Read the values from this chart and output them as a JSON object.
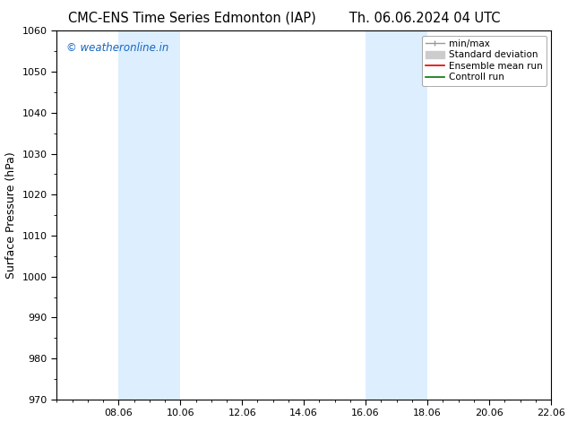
{
  "title_left": "CMC-ENS Time Series Edmonton (IAP)",
  "title_right": "Th. 06.06.2024 04 UTC",
  "ylabel": "Surface Pressure (hPa)",
  "ylim": [
    970,
    1060
  ],
  "yticks": [
    970,
    980,
    990,
    1000,
    1010,
    1020,
    1030,
    1040,
    1050,
    1060
  ],
  "xlim": [
    0,
    16
  ],
  "xtick_labels": [
    "08.06",
    "10.06",
    "12.06",
    "14.06",
    "16.06",
    "18.06",
    "20.06",
    "22.06"
  ],
  "xtick_positions": [
    2,
    4,
    6,
    8,
    10,
    12,
    14,
    16
  ],
  "shaded_bands": [
    {
      "x_start": 2,
      "x_end": 4,
      "color": "#ddeeff"
    },
    {
      "x_start": 10,
      "x_end": 12,
      "color": "#ddeeff"
    }
  ],
  "watermark_text": "© weatheronline.in",
  "watermark_color": "#1565c0",
  "legend_entries": [
    {
      "label": "min/max",
      "color": "#999999",
      "lw": 1.0
    },
    {
      "label": "Standard deviation",
      "color": "#cccccc",
      "lw": 5
    },
    {
      "label": "Ensemble mean run",
      "color": "#dd0000",
      "lw": 1.2
    },
    {
      "label": "Controll run",
      "color": "#007700",
      "lw": 1.2
    }
  ],
  "bg_color": "#ffffff",
  "plot_bg_color": "#ffffff",
  "title_fontsize": 10.5,
  "ylabel_fontsize": 9,
  "tick_fontsize": 8,
  "watermark_fontsize": 8.5,
  "legend_fontsize": 7.5
}
